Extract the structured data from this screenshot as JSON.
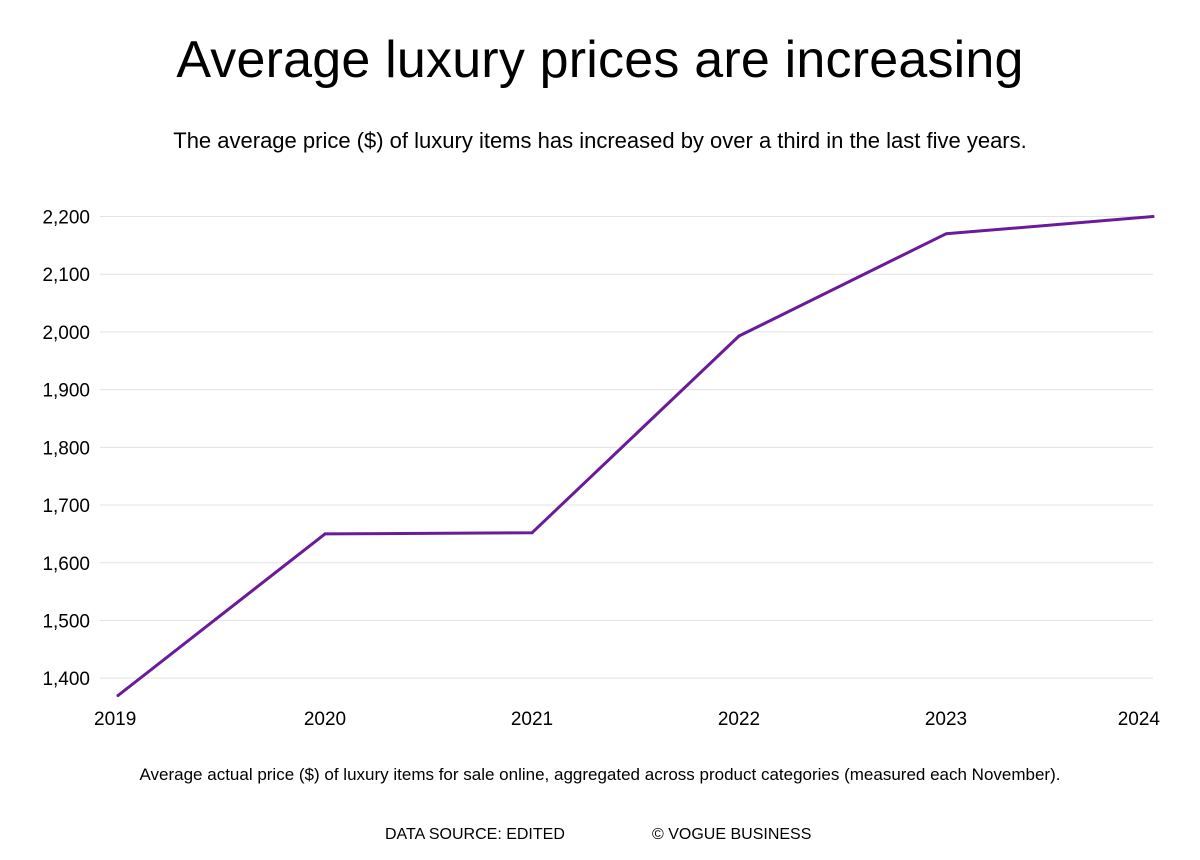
{
  "chart_data": {
    "type": "line",
    "title": "Average luxury prices are increasing",
    "subtitle": "The average price ($) of luxury items has increased by over a third in the last five years.",
    "xlabel": "",
    "ylabel": "",
    "categories": [
      "2019",
      "2020",
      "2021",
      "2022",
      "2023",
      "2024"
    ],
    "series": [
      {
        "name": "Average price ($)",
        "color": "#6a1b9a",
        "values": [
          1370,
          1650,
          1652,
          1993,
          2170,
          2200
        ]
      }
    ],
    "yticks": [
      1400,
      1500,
      1600,
      1700,
      1800,
      1900,
      2000,
      2100,
      2200
    ],
    "ytick_labels": [
      "1,400",
      "1,500",
      "1,600",
      "1,700",
      "1,800",
      "1,900",
      "2,000",
      "2,100",
      "2,200"
    ],
    "ylim": [
      1370,
      2200
    ],
    "grid": true,
    "legend": "none"
  },
  "caption": "Average actual price ($) of luxury items for sale online, aggregated across product categories (measured each November).",
  "source": "DATA SOURCE: EDITED",
  "credit": "© VOGUE BUSINESS"
}
